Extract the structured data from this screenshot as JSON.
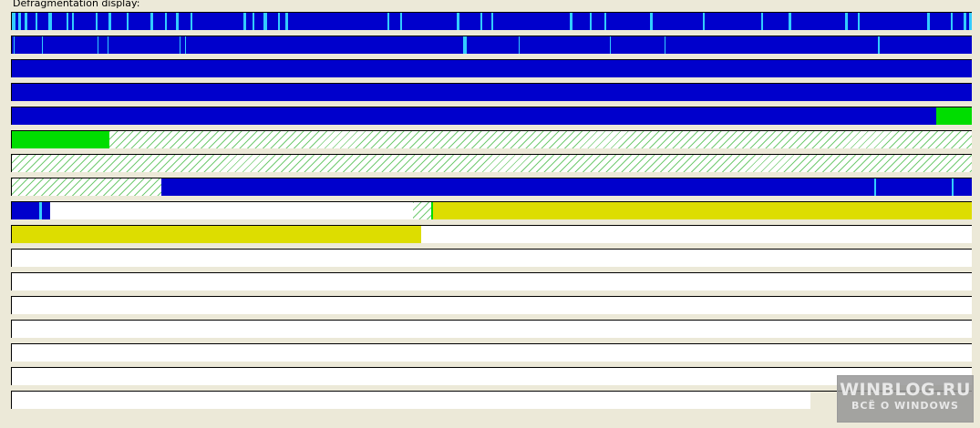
{
  "panel": {
    "title": "Defragmentation display:"
  },
  "legend_colors": {
    "fragmented": "#0000CC",
    "cyan_blocks": "#33CCFF",
    "green_blocks": "#00DD00",
    "hatched_blocks": "#00A000",
    "yellow_blocks": "#DDDD00",
    "free_space": "#FFFFFF"
  },
  "watermark": {
    "line1": "WINBLOG.RU",
    "line2": "ВСЁ О WINDOWS"
  }
}
